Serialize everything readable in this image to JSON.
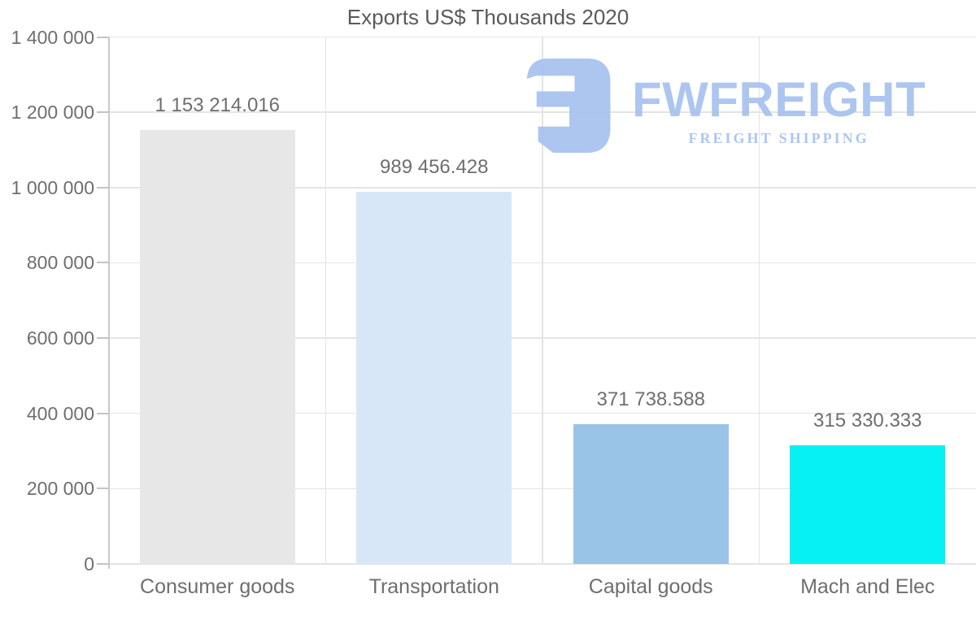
{
  "chart_data": {
    "type": "bar",
    "title": "Exports US$ Thousands 2020",
    "categories": [
      "Consumer goods",
      "Transportation",
      "Capital goods",
      "Mach and Elec"
    ],
    "values": [
      1153214.016,
      989456.428,
      371738.588,
      315330.333
    ],
    "value_labels": [
      "1 153 214.016",
      "989 456.428",
      "371 738.588",
      "315 330.333"
    ],
    "bar_colors": [
      "#e7e7e7",
      "#d7e7f8",
      "#9ac3e8",
      "#06f2f2"
    ],
    "xlabel": "",
    "ylabel": "",
    "ylim": [
      0,
      1400000
    ],
    "ytick_interval": 200000,
    "ytick_labels": [
      "0",
      "200 000",
      "400 000",
      "600 000",
      "800 000",
      "1 000 000",
      "1 200 000",
      "1 400 000"
    ],
    "grid": true,
    "legend": false,
    "title_color": "#5a5a5a",
    "text_color": "#6e6e6e",
    "grid_color": "#e4e4e4",
    "axis_color": "#c9c9c9",
    "tick_color": "#c3c3c3"
  },
  "watermark": {
    "name": "FWFREIGHT",
    "tagline": "FREIGHT SHIPPING",
    "color": "#a6c2ef"
  }
}
